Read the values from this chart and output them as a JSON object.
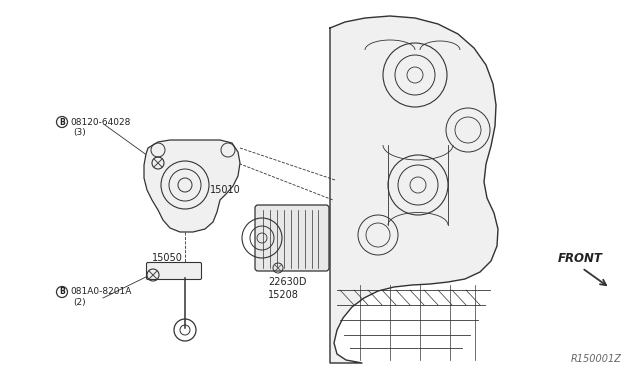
{
  "title": "",
  "bg_color": "#ffffff",
  "fig_width": 6.4,
  "fig_height": 3.72,
  "dpi": 100,
  "diagram_ref": "R150001Z",
  "labels": {
    "bolt1_num": "08120-64028",
    "bolt1_qty": "(3)",
    "part15010": "15010",
    "part15050": "15050",
    "bolt2_num": "081A0-8201A",
    "bolt2_qty": "(2)",
    "part22630D": "22630D",
    "part15208": "15208",
    "front": "FRONT"
  },
  "line_color": "#333333",
  "text_color": "#222222",
  "font_size": 6.5,
  "ref_font_size": 7.0
}
